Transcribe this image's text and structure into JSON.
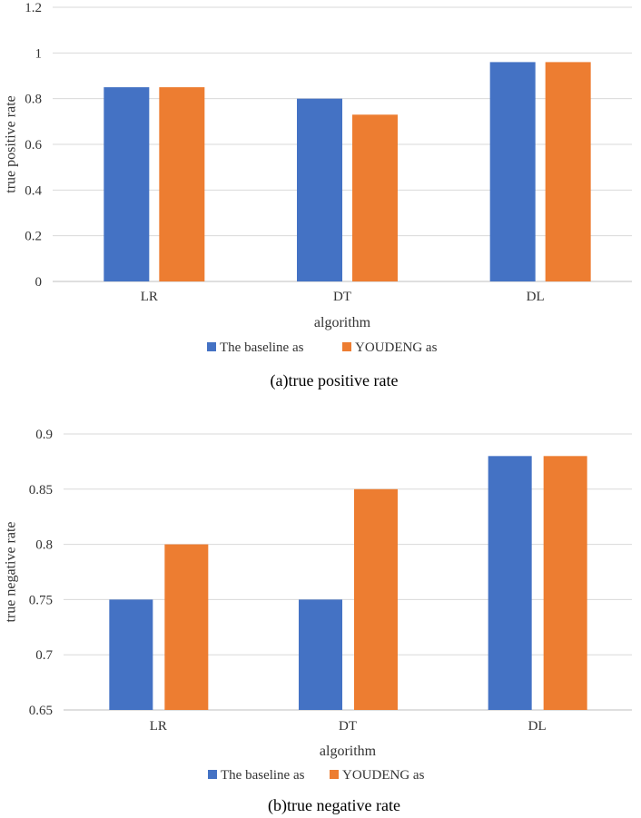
{
  "chart_data": [
    {
      "type": "bar",
      "title": "",
      "caption": "(a)true positive rate",
      "xlabel": "algorithm",
      "ylabel": "true positive rate",
      "categories": [
        "LR",
        "DT",
        "DL"
      ],
      "ylim": [
        0,
        1.2
      ],
      "yticks": [
        0,
        0.2,
        0.4,
        0.6,
        0.8,
        1,
        1.2
      ],
      "ytick_labels": [
        "0",
        "0.2",
        "0.4",
        "0.6",
        "0.8",
        "1",
        "1.2"
      ],
      "grid": true,
      "legend_position": "bottom",
      "series": [
        {
          "name": "The baseline as",
          "color": "#4472C4",
          "values": [
            0.85,
            0.8,
            0.96
          ]
        },
        {
          "name": "YOUDENG as",
          "color": "#ED7D31",
          "values": [
            0.85,
            0.73,
            0.96
          ]
        }
      ]
    },
    {
      "type": "bar",
      "title": "",
      "caption": "(b)true negative rate",
      "xlabel": "algorithm",
      "ylabel": "true negative rate",
      "categories": [
        "LR",
        "DT",
        "DL"
      ],
      "ylim": [
        0.65,
        0.9
      ],
      "yticks": [
        0.65,
        0.7,
        0.75,
        0.8,
        0.85,
        0.9
      ],
      "ytick_labels": [
        "0.65",
        "0.7",
        "0.75",
        "0.8",
        "0.85",
        "0.9"
      ],
      "grid": true,
      "legend_position": "bottom",
      "series": [
        {
          "name": "The baseline as",
          "color": "#4472C4",
          "values": [
            0.75,
            0.75,
            0.88
          ]
        },
        {
          "name": "YOUDENG as",
          "color": "#ED7D31",
          "values": [
            0.8,
            0.85,
            0.88
          ]
        }
      ]
    }
  ]
}
